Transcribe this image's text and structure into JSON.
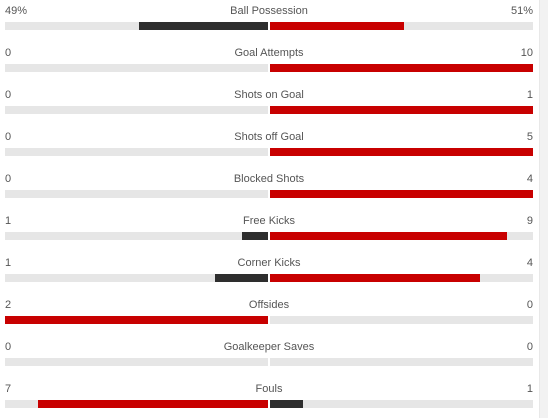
{
  "colors": {
    "leading": "#c80000",
    "trailing": "#2e2e2e",
    "track": "#e6e6e6",
    "text": "#555555"
  },
  "stats": [
    {
      "name": "Ball Possession",
      "home": "49%",
      "away": "51%",
      "home_value": 49,
      "away_value": 51
    },
    {
      "name": "Goal Attempts",
      "home": "0",
      "away": "10",
      "home_value": 0,
      "away_value": 10
    },
    {
      "name": "Shots on Goal",
      "home": "0",
      "away": "1",
      "home_value": 0,
      "away_value": 1
    },
    {
      "name": "Shots off Goal",
      "home": "0",
      "away": "5",
      "home_value": 0,
      "away_value": 5
    },
    {
      "name": "Blocked Shots",
      "home": "0",
      "away": "4",
      "home_value": 0,
      "away_value": 4
    },
    {
      "name": "Free Kicks",
      "home": "1",
      "away": "9",
      "home_value": 1,
      "away_value": 9
    },
    {
      "name": "Corner Kicks",
      "home": "1",
      "away": "4",
      "home_value": 1,
      "away_value": 4
    },
    {
      "name": "Offsides",
      "home": "2",
      "away": "0",
      "home_value": 2,
      "away_value": 0
    },
    {
      "name": "Goalkeeper Saves",
      "home": "0",
      "away": "0",
      "home_value": 0,
      "away_value": 0
    },
    {
      "name": "Fouls",
      "home": "7",
      "away": "1",
      "home_value": 7,
      "away_value": 1
    }
  ]
}
